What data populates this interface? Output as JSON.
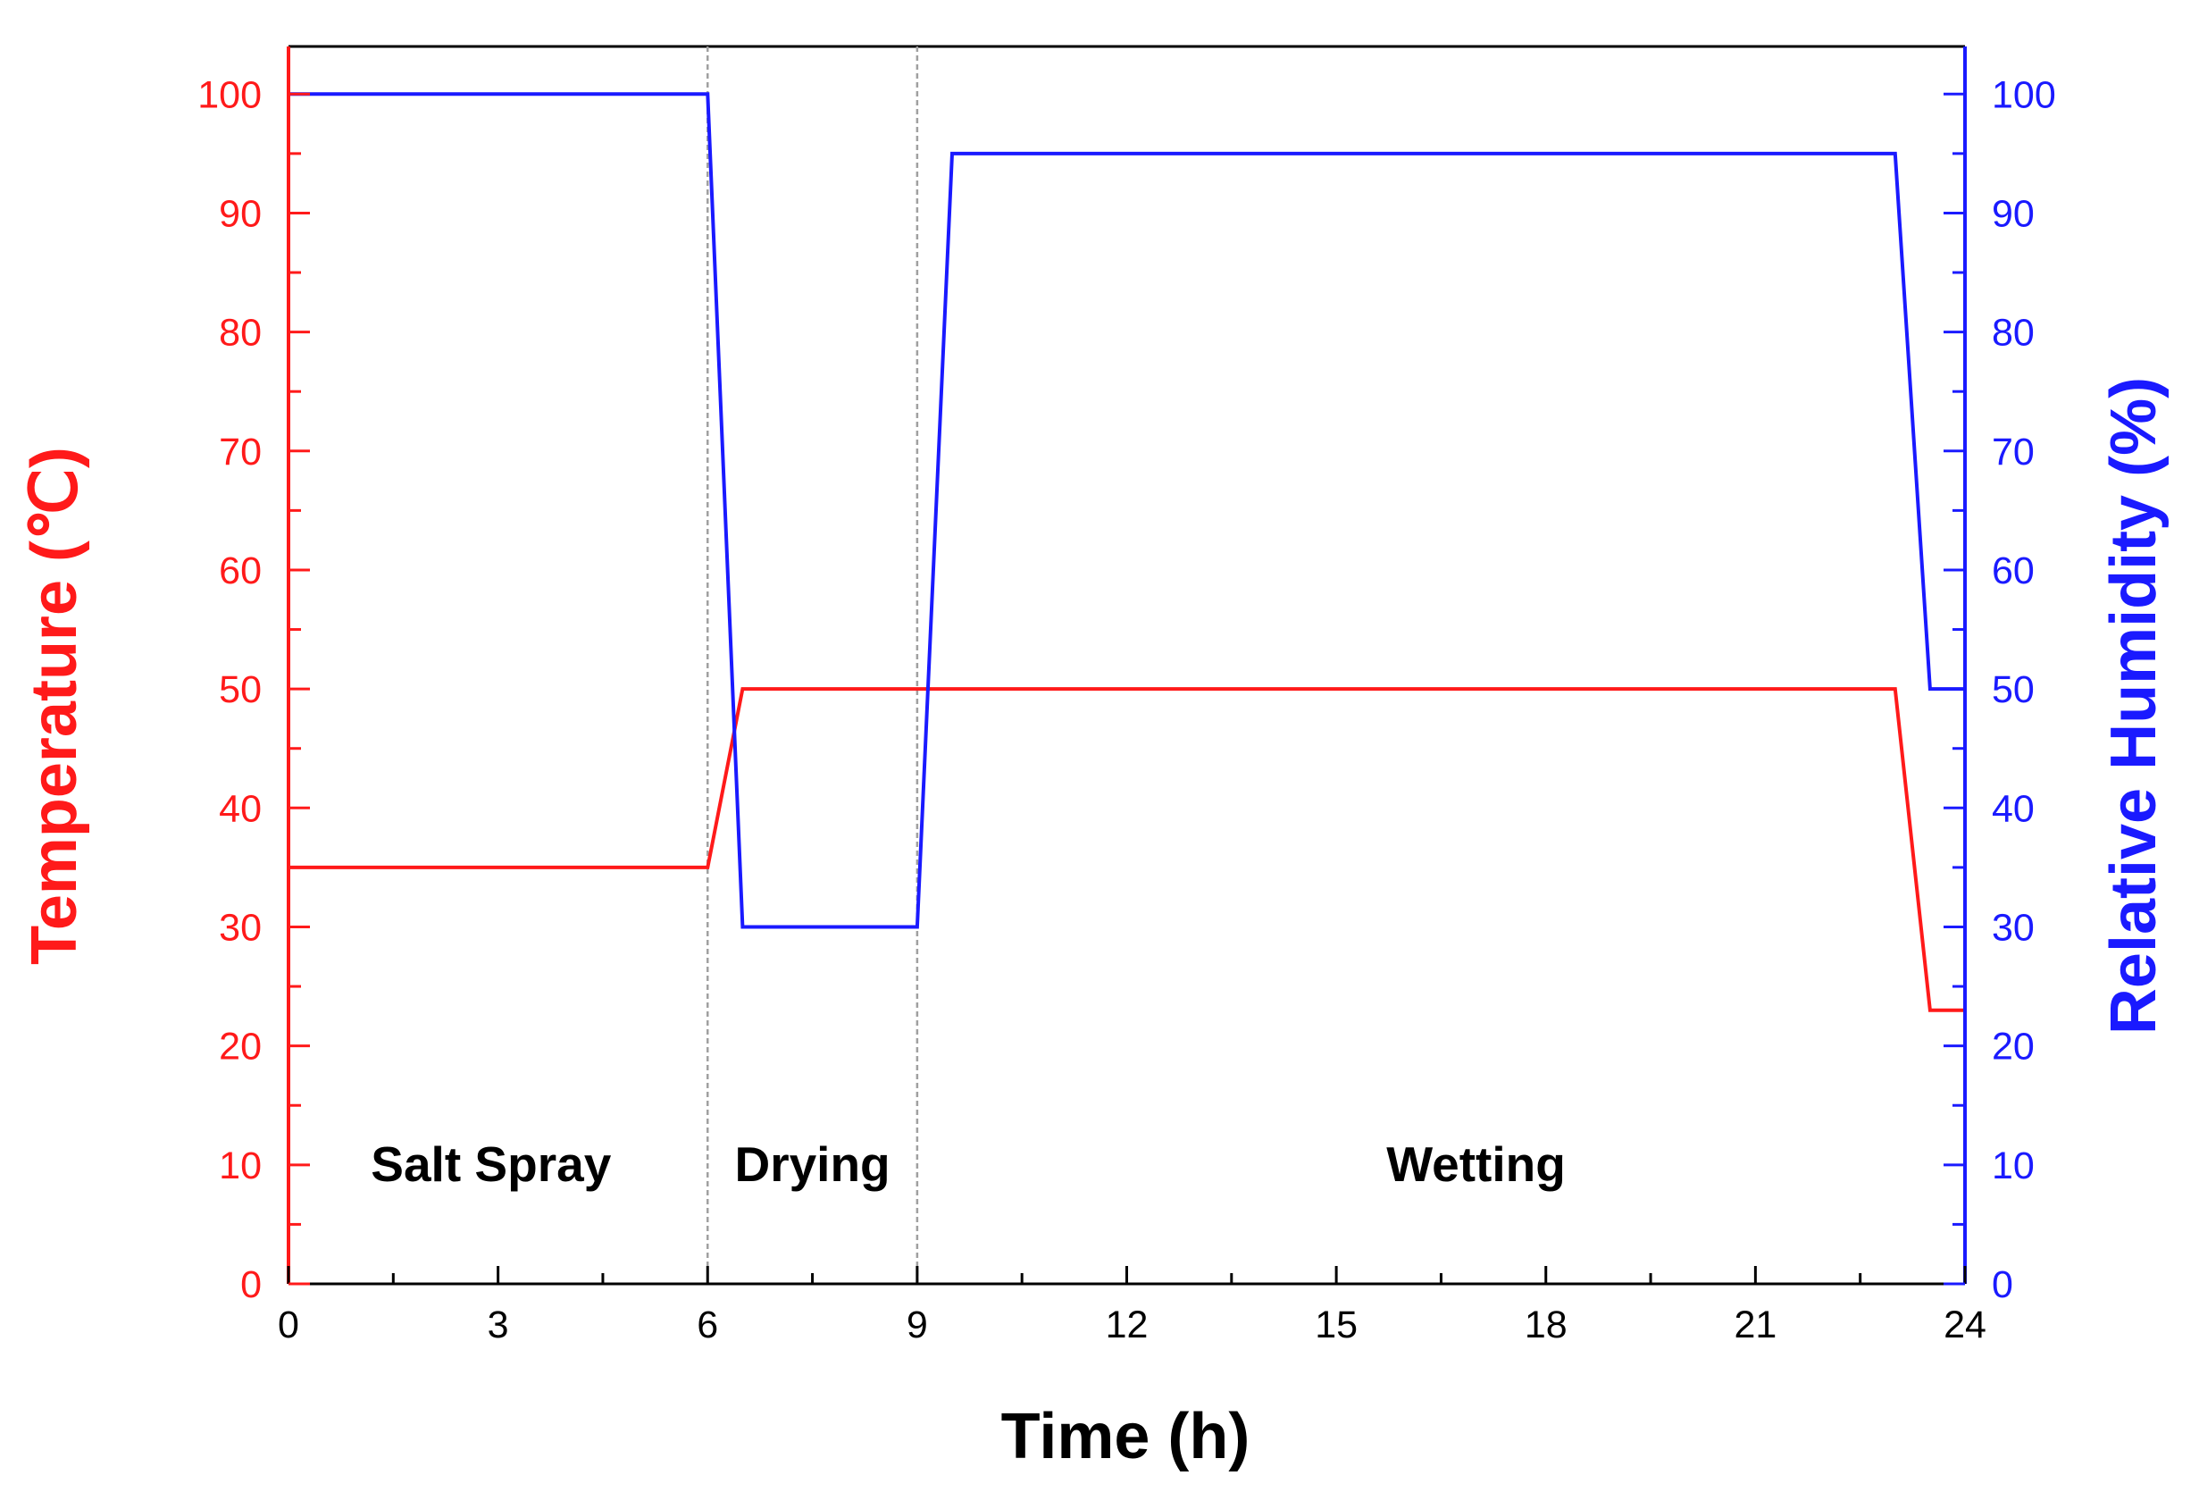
{
  "chart_data": {
    "type": "line",
    "xlabel": "Time (h)",
    "ylabel_left": "Temperature (℃)",
    "ylabel_right": "Relative Humidity (%)",
    "xlim": [
      0,
      24
    ],
    "ylim_left": [
      0,
      104
    ],
    "ylim_right": [
      0,
      104
    ],
    "x_ticks": [
      0,
      3,
      6,
      9,
      12,
      15,
      18,
      21,
      24
    ],
    "y_ticks_left": [
      0,
      10,
      20,
      30,
      40,
      50,
      60,
      70,
      80,
      90,
      100
    ],
    "y_ticks_right": [
      0,
      10,
      20,
      30,
      40,
      50,
      60,
      70,
      80,
      90,
      100
    ],
    "grid": false,
    "legend": "none",
    "phase_dividers": [
      6,
      9
    ],
    "phases": [
      {
        "label": "Salt Spray",
        "x_center": 2.9
      },
      {
        "label": "Drying",
        "x_center": 7.5
      },
      {
        "label": "Wetting",
        "x_center": 17
      }
    ],
    "series": [
      {
        "axis": "left",
        "color": "#ff1a1a",
        "x": [
          0,
          6,
          6.5,
          9,
          23,
          23.5,
          24
        ],
        "y": [
          35,
          35,
          50,
          50,
          50,
          23,
          23
        ]
      },
      {
        "axis": "right",
        "color": "#1a1aff",
        "x": [
          0,
          6,
          6.5,
          9,
          9.5,
          23,
          23.5,
          24
        ],
        "y": [
          100,
          100,
          30,
          30,
          95,
          95,
          50,
          50
        ]
      }
    ],
    "colors": {
      "left_axis": "#ff1a1a",
      "right_axis": "#1a1aff",
      "frame": "#000000",
      "divider": "#a0a0a0"
    }
  }
}
